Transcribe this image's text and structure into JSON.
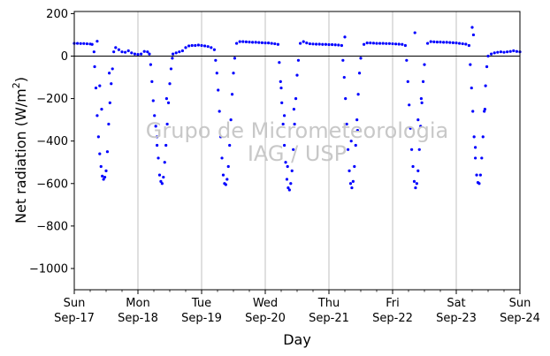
{
  "chart_data": {
    "type": "scatter",
    "xlabel": "Day",
    "ylabel": "Net radiation (W/m²)",
    "ylabel_prefix": "Net radiation (W/m",
    "ylabel_superscript": "2",
    "ylabel_suffix": ")",
    "watermark": [
      "Grupo de Micrometeorologia",
      "IAG / USP"
    ],
    "xlim": [
      0,
      7
    ],
    "ylim": [
      -1100,
      210
    ],
    "yticks": [
      200,
      0,
      -200,
      -400,
      -600,
      -800,
      -1000
    ],
    "ytick_labels": [
      "200",
      "0",
      "−200",
      "−400",
      "−600",
      "−800",
      "−1000"
    ],
    "xticks": [
      {
        "day": "Sun",
        "date": "Sep-17",
        "x": 0
      },
      {
        "day": "Mon",
        "date": "Sep-18",
        "x": 1
      },
      {
        "day": "Tue",
        "date": "Sep-19",
        "x": 2
      },
      {
        "day": "Wed",
        "date": "Sep-20",
        "x": 3
      },
      {
        "day": "Thu",
        "date": "Sep-21",
        "x": 4
      },
      {
        "day": "Fri",
        "date": "Sep-22",
        "x": 5
      },
      {
        "day": "Sat",
        "date": "Sep-23",
        "x": 6
      },
      {
        "day": "Sun",
        "date": "Sep-24",
        "x": 7
      }
    ],
    "grid_x": true,
    "zero_line": true,
    "marker_color": "#0000ff",
    "series": [
      {
        "values": [
          [
            0.0,
            60
          ],
          [
            0.05,
            60
          ],
          [
            0.1,
            59
          ],
          [
            0.15,
            59
          ],
          [
            0.2,
            58
          ],
          [
            0.25,
            57
          ],
          [
            0.28,
            55
          ],
          [
            0.31,
            20
          ],
          [
            0.32,
            -50
          ],
          [
            0.34,
            -150
          ],
          [
            0.36,
            -280
          ],
          [
            0.38,
            -380
          ],
          [
            0.4,
            -460
          ],
          [
            0.42,
            -520
          ],
          [
            0.44,
            -565
          ],
          [
            0.46,
            -580
          ],
          [
            0.48,
            -570
          ],
          [
            0.5,
            -540
          ],
          [
            0.52,
            -450
          ],
          [
            0.54,
            -320
          ],
          [
            0.56,
            -220
          ],
          [
            0.58,
            -130
          ],
          [
            0.6,
            -60
          ],
          [
            0.4,
            -140
          ],
          [
            0.43,
            -250
          ],
          [
            0.36,
            70
          ],
          [
            0.55,
            -80
          ],
          [
            0.62,
            20
          ],
          [
            0.65,
            40
          ],
          [
            0.7,
            30
          ],
          [
            0.75,
            20
          ],
          [
            0.8,
            18
          ],
          [
            0.85,
            25
          ],
          [
            0.9,
            15
          ],
          [
            0.95,
            10
          ],
          [
            1.0,
            8
          ],
          [
            1.05,
            10
          ],
          [
            1.1,
            22
          ],
          [
            1.15,
            20
          ],
          [
            1.18,
            10
          ],
          [
            1.2,
            -40
          ],
          [
            1.22,
            -120
          ],
          [
            1.24,
            -210
          ],
          [
            1.26,
            -280
          ],
          [
            1.28,
            -330
          ],
          [
            1.3,
            -420
          ],
          [
            1.32,
            -480
          ],
          [
            1.34,
            -560
          ],
          [
            1.36,
            -590
          ],
          [
            1.38,
            -600
          ],
          [
            1.4,
            -570
          ],
          [
            1.42,
            -500
          ],
          [
            1.44,
            -420
          ],
          [
            1.46,
            -320
          ],
          [
            1.48,
            -220
          ],
          [
            1.5,
            -130
          ],
          [
            1.52,
            -60
          ],
          [
            1.54,
            -10
          ],
          [
            1.3,
            -380
          ],
          [
            1.45,
            -200
          ],
          [
            1.55,
            10
          ],
          [
            1.6,
            15
          ],
          [
            1.65,
            20
          ],
          [
            1.7,
            25
          ],
          [
            1.75,
            40
          ],
          [
            1.8,
            48
          ],
          [
            1.85,
            50
          ],
          [
            1.9,
            50
          ],
          [
            1.95,
            52
          ],
          [
            2.0,
            50
          ],
          [
            2.05,
            48
          ],
          [
            2.1,
            45
          ],
          [
            2.15,
            40
          ],
          [
            2.2,
            30
          ],
          [
            2.22,
            -20
          ],
          [
            2.24,
            -80
          ],
          [
            2.26,
            -160
          ],
          [
            2.28,
            -260
          ],
          [
            2.3,
            -380
          ],
          [
            2.32,
            -480
          ],
          [
            2.34,
            -560
          ],
          [
            2.36,
            -600
          ],
          [
            2.38,
            -605
          ],
          [
            2.4,
            -580
          ],
          [
            2.42,
            -520
          ],
          [
            2.44,
            -420
          ],
          [
            2.46,
            -300
          ],
          [
            2.48,
            -180
          ],
          [
            2.5,
            -80
          ],
          [
            2.52,
            -10
          ],
          [
            2.55,
            60
          ],
          [
            2.6,
            68
          ],
          [
            2.65,
            68
          ],
          [
            2.7,
            67
          ],
          [
            2.75,
            66
          ],
          [
            2.8,
            65
          ],
          [
            2.85,
            65
          ],
          [
            2.9,
            64
          ],
          [
            2.95,
            63
          ],
          [
            3.0,
            62
          ],
          [
            3.05,
            62
          ],
          [
            3.1,
            60
          ],
          [
            3.15,
            58
          ],
          [
            3.2,
            55
          ],
          [
            3.22,
            -30
          ],
          [
            3.24,
            -120
          ],
          [
            3.26,
            -220
          ],
          [
            3.28,
            -320
          ],
          [
            3.3,
            -420
          ],
          [
            3.32,
            -500
          ],
          [
            3.34,
            -580
          ],
          [
            3.36,
            -620
          ],
          [
            3.38,
            -630
          ],
          [
            3.4,
            -600
          ],
          [
            3.42,
            -540
          ],
          [
            3.44,
            -440
          ],
          [
            3.46,
            -320
          ],
          [
            3.48,
            -200
          ],
          [
            3.5,
            -90
          ],
          [
            3.52,
            -20
          ],
          [
            3.25,
            -150
          ],
          [
            3.3,
            -280
          ],
          [
            3.45,
            -250
          ],
          [
            3.35,
            -520
          ],
          [
            3.55,
            60
          ],
          [
            3.6,
            68
          ],
          [
            3.65,
            62
          ],
          [
            3.7,
            58
          ],
          [
            3.75,
            57
          ],
          [
            3.8,
            56
          ],
          [
            3.85,
            56
          ],
          [
            3.9,
            55
          ],
          [
            3.95,
            55
          ],
          [
            4.0,
            54
          ],
          [
            4.05,
            54
          ],
          [
            4.1,
            53
          ],
          [
            4.15,
            52
          ],
          [
            4.2,
            50
          ],
          [
            4.22,
            -20
          ],
          [
            4.24,
            -100
          ],
          [
            4.26,
            -200
          ],
          [
            4.28,
            -320
          ],
          [
            4.3,
            -440
          ],
          [
            4.32,
            -540
          ],
          [
            4.34,
            -600
          ],
          [
            4.36,
            -620
          ],
          [
            4.38,
            -590
          ],
          [
            4.4,
            -520
          ],
          [
            4.42,
            -420
          ],
          [
            4.44,
            -300
          ],
          [
            4.46,
            -180
          ],
          [
            4.48,
            -80
          ],
          [
            4.5,
            -10
          ],
          [
            4.25,
            90
          ],
          [
            4.35,
            -400
          ],
          [
            4.45,
            -350
          ],
          [
            4.55,
            55
          ],
          [
            4.6,
            62
          ],
          [
            4.65,
            62
          ],
          [
            4.7,
            61
          ],
          [
            4.75,
            60
          ],
          [
            4.8,
            60
          ],
          [
            4.85,
            60
          ],
          [
            4.9,
            59
          ],
          [
            4.95,
            59
          ],
          [
            5.0,
            58
          ],
          [
            5.05,
            57
          ],
          [
            5.1,
            56
          ],
          [
            5.15,
            55
          ],
          [
            5.2,
            50
          ],
          [
            5.22,
            -20
          ],
          [
            5.24,
            -120
          ],
          [
            5.26,
            -230
          ],
          [
            5.28,
            -340
          ],
          [
            5.3,
            -440
          ],
          [
            5.32,
            -520
          ],
          [
            5.34,
            -590
          ],
          [
            5.36,
            -620
          ],
          [
            5.38,
            -600
          ],
          [
            5.4,
            -540
          ],
          [
            5.42,
            -440
          ],
          [
            5.44,
            -330
          ],
          [
            5.46,
            -220
          ],
          [
            5.48,
            -120
          ],
          [
            5.5,
            -40
          ],
          [
            5.35,
            110
          ],
          [
            5.4,
            -300
          ],
          [
            5.45,
            -200
          ],
          [
            5.55,
            60
          ],
          [
            5.6,
            68
          ],
          [
            5.65,
            67
          ],
          [
            5.7,
            66
          ],
          [
            5.75,
            66
          ],
          [
            5.8,
            65
          ],
          [
            5.85,
            65
          ],
          [
            5.9,
            64
          ],
          [
            5.95,
            63
          ],
          [
            6.0,
            62
          ],
          [
            6.05,
            60
          ],
          [
            6.1,
            58
          ],
          [
            6.15,
            56
          ],
          [
            6.2,
            50
          ],
          [
            6.22,
            -40
          ],
          [
            6.24,
            -150
          ],
          [
            6.26,
            -260
          ],
          [
            6.28,
            -380
          ],
          [
            6.3,
            -480
          ],
          [
            6.32,
            -560
          ],
          [
            6.34,
            -595
          ],
          [
            6.36,
            -600
          ],
          [
            6.38,
            -560
          ],
          [
            6.4,
            -480
          ],
          [
            6.42,
            -380
          ],
          [
            6.44,
            -260
          ],
          [
            6.46,
            -140
          ],
          [
            6.48,
            -50
          ],
          [
            6.5,
            0
          ],
          [
            6.25,
            135
          ],
          [
            6.27,
            100
          ],
          [
            6.3,
            -430
          ],
          [
            6.45,
            -250
          ],
          [
            6.55,
            10
          ],
          [
            6.6,
            15
          ],
          [
            6.65,
            18
          ],
          [
            6.7,
            20
          ],
          [
            6.75,
            18
          ],
          [
            6.8,
            20
          ],
          [
            6.85,
            22
          ],
          [
            6.9,
            25
          ],
          [
            6.95,
            22
          ],
          [
            7.0,
            20
          ]
        ]
      }
    ]
  }
}
